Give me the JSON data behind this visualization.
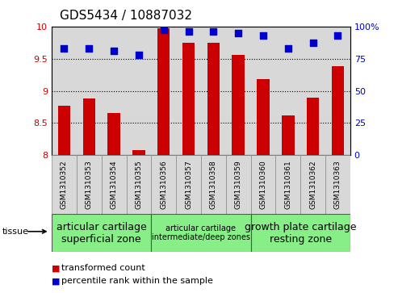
{
  "title": "GDS5434 / 10887032",
  "samples": [
    "GSM1310352",
    "GSM1310353",
    "GSM1310354",
    "GSM1310355",
    "GSM1310356",
    "GSM1310357",
    "GSM1310358",
    "GSM1310359",
    "GSM1310360",
    "GSM1310361",
    "GSM1310362",
    "GSM1310363"
  ],
  "transformed_count": [
    8.77,
    8.88,
    8.65,
    8.08,
    9.97,
    9.74,
    9.74,
    9.56,
    9.18,
    8.62,
    8.9,
    9.38
  ],
  "percentile_rank": [
    83,
    83,
    81,
    78,
    97,
    96,
    96,
    95,
    93,
    83,
    87,
    93
  ],
  "bar_color": "#cc0000",
  "dot_color": "#0000cc",
  "ylim_left": [
    8,
    10
  ],
  "ylim_right": [
    0,
    100
  ],
  "yticks_left": [
    8,
    8.5,
    9,
    9.5,
    10
  ],
  "yticks_right": [
    0,
    25,
    50,
    75,
    100
  ],
  "ytick_labels_right": [
    "0",
    "25",
    "50",
    "75",
    "100%"
  ],
  "grid_lines": [
    8.5,
    9.0,
    9.5
  ],
  "tissue_groups": [
    {
      "label": "articular cartilage\nsuperficial zone",
      "start": 0,
      "end": 4,
      "fontsize": 9
    },
    {
      "label": "articular cartilage\nintermediate/deep zones",
      "start": 4,
      "end": 8,
      "fontsize": 7
    },
    {
      "label": "growth plate cartilage\nresting zone",
      "start": 8,
      "end": 12,
      "fontsize": 9
    }
  ],
  "legend_red_label": "transformed count",
  "legend_blue_label": "percentile rank within the sample",
  "background_color": "#ffffff",
  "plot_bg_color": "#d8d8d8",
  "tissue_bg_color": "#88ee88",
  "bar_width": 0.5,
  "dot_size": 35,
  "title_fontsize": 11,
  "tick_fontsize": 8,
  "sample_fontsize": 6.5,
  "legend_fontsize": 8
}
